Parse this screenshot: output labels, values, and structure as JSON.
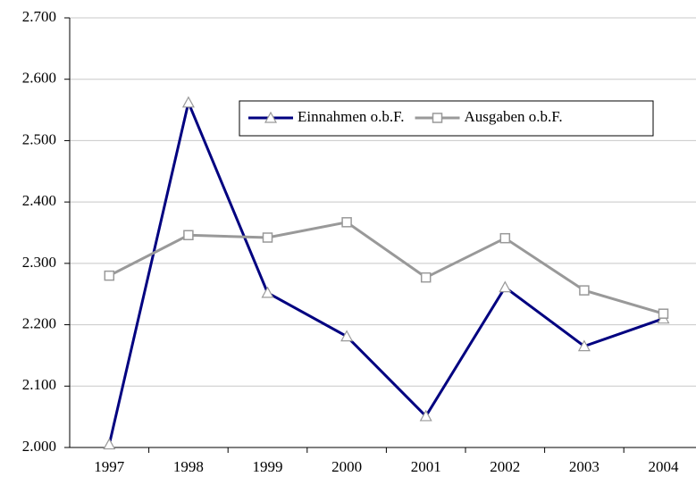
{
  "chart_data": {
    "type": "line",
    "categories": [
      "1997",
      "1998",
      "1999",
      "2000",
      "2001",
      "2002",
      "2003",
      "2004"
    ],
    "series": [
      {
        "name": "Einnahmen o.b.F.",
        "color": "#000080",
        "marker": "triangle",
        "values": [
          2005,
          2562,
          2252,
          2181,
          2051,
          2261,
          2165,
          2210
        ]
      },
      {
        "name": "Ausgaben o.b.F.",
        "color": "#999999",
        "marker": "square",
        "values": [
          2280,
          2346,
          2342,
          2367,
          2277,
          2341,
          2256,
          2218
        ]
      }
    ],
    "ylim": [
      2000,
      2700
    ],
    "yticks": [
      {
        "value": 2000,
        "label": "2.000"
      },
      {
        "value": 2100,
        "label": "2.100"
      },
      {
        "value": 2200,
        "label": "2.200"
      },
      {
        "value": 2300,
        "label": "2.300"
      },
      {
        "value": 2400,
        "label": "2.400"
      },
      {
        "value": 2500,
        "label": "2.500"
      },
      {
        "value": 2600,
        "label": "2.600"
      },
      {
        "value": 2700,
        "label": "2.700"
      }
    ],
    "grid": true
  }
}
